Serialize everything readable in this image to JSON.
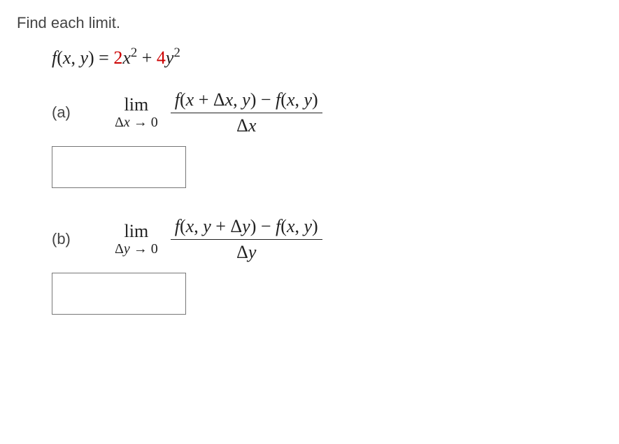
{
  "prompt": "Find each limit.",
  "fn": {
    "lhs_f": "f",
    "lhs_open": "(",
    "lhs_x": "x",
    "lhs_comma": ", ",
    "lhs_y": "y",
    "lhs_close": ") = ",
    "coef2": "2",
    "x": "x",
    "exp2a": "2",
    "plus": " + ",
    "coef4": "4",
    "y": "y",
    "exp2b": "2"
  },
  "partA": {
    "label": "(a)",
    "lim": "lim",
    "sub_delta": "Δ",
    "sub_var": "x",
    "sub_arrow": " → 0",
    "num_f1": "f",
    "num_open1": "(",
    "num_x": "x",
    "num_plus": " + Δ",
    "num_dx": "x",
    "num_comma": ", ",
    "num_y": "y",
    "num_close1": ") − ",
    "num_f2": "f",
    "num_open2": "(",
    "num_x2": "x",
    "num_comma2": ", ",
    "num_y2": "y",
    "num_close2": ")",
    "den_delta": "Δ",
    "den_var": "x"
  },
  "partB": {
    "label": "(b)",
    "lim": "lim",
    "sub_delta": "Δ",
    "sub_var": "y",
    "sub_arrow": " → 0",
    "num_f1": "f",
    "num_open1": "(",
    "num_x": "x",
    "num_comma": ", ",
    "num_y": "y",
    "num_plus": " + Δ",
    "num_dy": "y",
    "num_close1": ") − ",
    "num_f2": "f",
    "num_open2": "(",
    "num_x2": "x",
    "num_comma2": ", ",
    "num_y2": "y",
    "num_close2": ")",
    "den_delta": "Δ",
    "den_var": "y"
  },
  "colors": {
    "coef": "#cc0000",
    "text": "#444444",
    "math": "#222222"
  }
}
